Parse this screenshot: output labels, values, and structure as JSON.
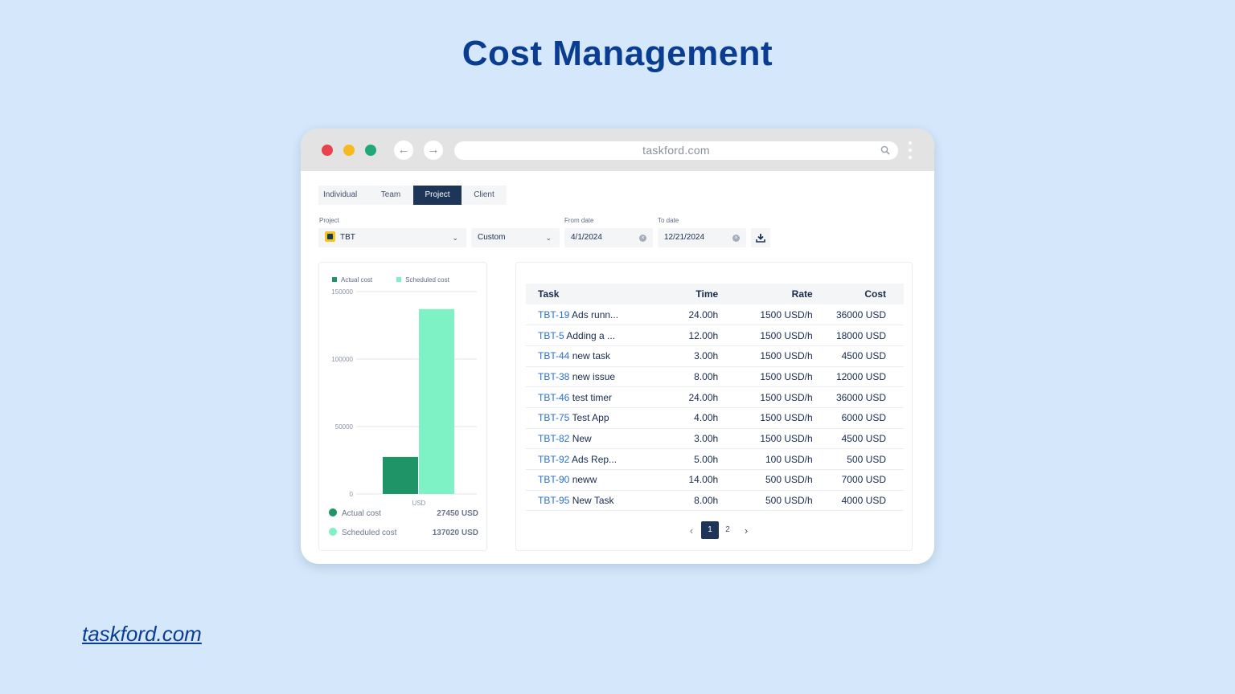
{
  "headline": "Cost Management",
  "footer_link": "taskford.com",
  "browser": {
    "url": "taskford.com",
    "back_icon": "arrow-left-icon",
    "forward_icon": "arrow-right-icon"
  },
  "tabs": [
    {
      "label": "Individual",
      "active": false
    },
    {
      "label": "Team",
      "active": false
    },
    {
      "label": "Project",
      "active": true
    },
    {
      "label": "Client",
      "active": false
    }
  ],
  "filters": {
    "project_label": "Project",
    "project_value": "TBT",
    "range_value": "Custom",
    "from_label": "From date",
    "from_value": "4/1/2024",
    "to_label": "To date",
    "to_value": "12/21/2024"
  },
  "chart_data": {
    "type": "bar",
    "categories": [
      "USD"
    ],
    "series": [
      {
        "name": "Actual cost",
        "values": [
          27450
        ],
        "color": "#1f9466"
      },
      {
        "name": "Scheduled cost",
        "values": [
          137020
        ],
        "color": "#7ef2c4"
      }
    ],
    "yticks": [
      "150000",
      "100000",
      "50000",
      "0"
    ],
    "ylim": [
      0,
      150000
    ],
    "legend_position": "top-left"
  },
  "summary": [
    {
      "label": "Actual cost",
      "value": "27450 USD",
      "color": "#1f9466"
    },
    {
      "label": "Scheduled cost",
      "value": "137020 USD",
      "color": "#7ef2c4"
    }
  ],
  "table": {
    "headers": {
      "task": "Task",
      "time": "Time",
      "rate": "Rate",
      "cost": "Cost"
    },
    "rows": [
      {
        "key": "TBT-19",
        "name": "Ads runn...",
        "time": "24.00h",
        "rate": "1500 USD/h",
        "cost": "36000 USD"
      },
      {
        "key": "TBT-5",
        "name": "Adding a ...",
        "time": "12.00h",
        "rate": "1500 USD/h",
        "cost": "18000 USD"
      },
      {
        "key": "TBT-44",
        "name": "new task",
        "time": "3.00h",
        "rate": "1500 USD/h",
        "cost": "4500 USD"
      },
      {
        "key": "TBT-38",
        "name": "new issue",
        "time": "8.00h",
        "rate": "1500 USD/h",
        "cost": "12000 USD"
      },
      {
        "key": "TBT-46",
        "name": "test timer",
        "time": "24.00h",
        "rate": "1500 USD/h",
        "cost": "36000 USD"
      },
      {
        "key": "TBT-75",
        "name": "Test App",
        "time": "4.00h",
        "rate": "1500 USD/h",
        "cost": "6000 USD"
      },
      {
        "key": "TBT-82",
        "name": "New",
        "time": "3.00h",
        "rate": "1500 USD/h",
        "cost": "4500 USD"
      },
      {
        "key": "TBT-92",
        "name": "Ads Rep...",
        "time": "5.00h",
        "rate": "100 USD/h",
        "cost": "500 USD"
      },
      {
        "key": "TBT-90",
        "name": "neww",
        "time": "14.00h",
        "rate": "500 USD/h",
        "cost": "7000 USD"
      },
      {
        "key": "TBT-95",
        "name": "New Task",
        "time": "8.00h",
        "rate": "500 USD/h",
        "cost": "4000 USD"
      }
    ]
  },
  "pagination": {
    "pages": [
      "1",
      "2"
    ],
    "current": "1"
  }
}
